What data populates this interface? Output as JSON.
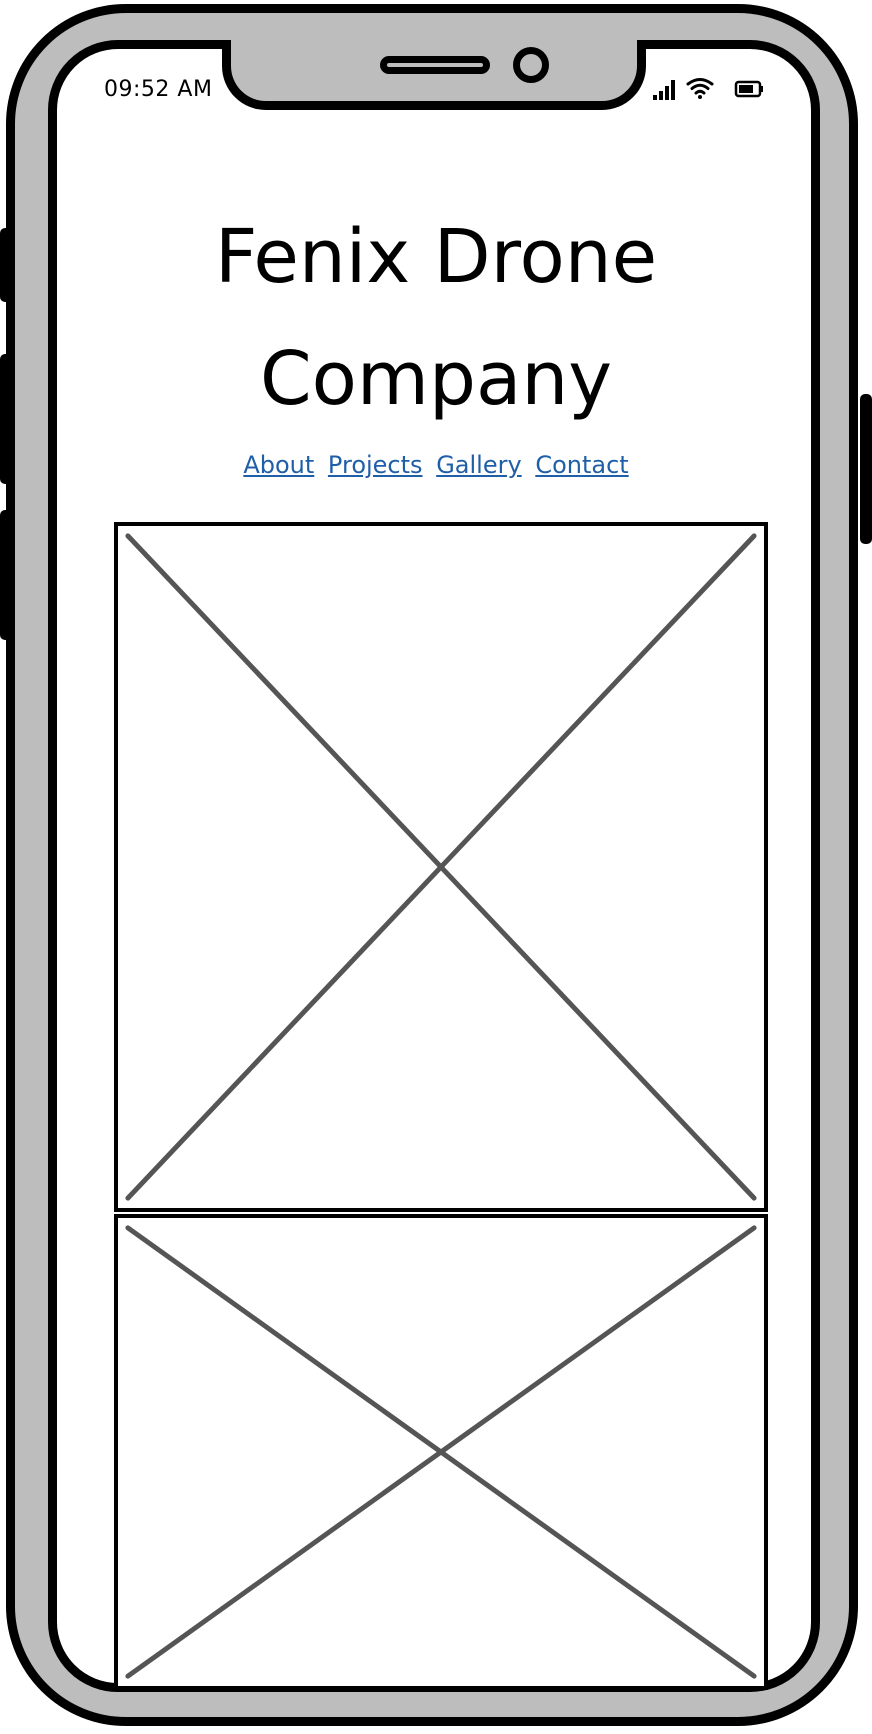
{
  "status_bar": {
    "time": "09:52 AM",
    "icons": [
      "signal-icon",
      "wifi-icon",
      "battery-icon"
    ]
  },
  "header": {
    "title": "Fenix Drone Company"
  },
  "nav": {
    "items": [
      {
        "label": "About"
      },
      {
        "label": "Projects"
      },
      {
        "label": "Gallery"
      },
      {
        "label": "Contact"
      }
    ]
  },
  "content": {
    "placeholders": [
      "image-placeholder",
      "image-placeholder"
    ]
  },
  "colors": {
    "frame": "#000000",
    "bezel": "#bdbdbd",
    "screen": "#ffffff",
    "link": "#1f5fa8",
    "placeholder_line": "#555555"
  }
}
